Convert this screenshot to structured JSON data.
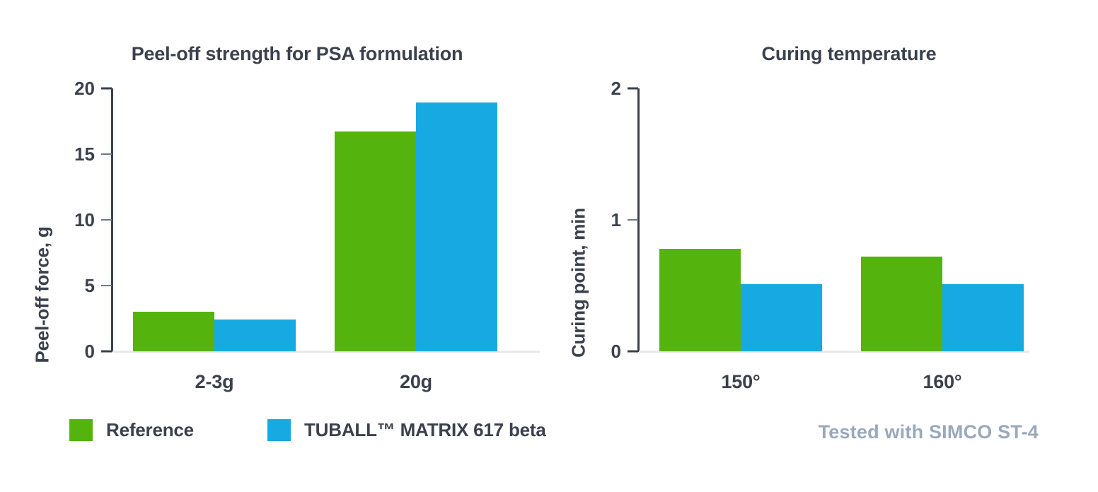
{
  "colors": {
    "series": [
      "#54B30D",
      "#17A9E2"
    ],
    "text_dark": "#3A414D",
    "muted_note": "#9AA8BD",
    "axis": "#3A414D",
    "tick_minor": "#6F7781",
    "baseline": "#E9E9E9",
    "background": "#FFFFFF"
  },
  "chart_data": [
    {
      "type": "bar",
      "title": "Peel-off strength for PSA formulation",
      "ylabel": "Peel-off force, g",
      "xlabel": "",
      "categories": [
        "2-3g",
        "20g"
      ],
      "series": [
        {
          "name": "Reference",
          "values": [
            3.0,
            16.7
          ]
        },
        {
          "name": "TUBALL™ MATRIX 617 beta",
          "values": [
            2.4,
            18.9
          ]
        }
      ],
      "ylim": [
        0,
        20
      ],
      "yticks": [
        0,
        5,
        10,
        15,
        20
      ],
      "grid": false,
      "legend_position": "below-left"
    },
    {
      "type": "bar",
      "title": "Curing temperature",
      "ylabel": "Curing point, min",
      "xlabel": "",
      "categories": [
        "150°",
        "160°"
      ],
      "series": [
        {
          "name": "Reference",
          "values": [
            0.78,
            0.72
          ]
        },
        {
          "name": "TUBALL™ MATRIX 617 beta",
          "values": [
            0.51,
            0.51
          ]
        }
      ],
      "ylim": [
        0,
        2
      ],
      "yticks": [
        0,
        1,
        2
      ],
      "grid": false,
      "legend_position": "none"
    }
  ],
  "legend": {
    "items": [
      {
        "label": "Reference",
        "color": "#54B30D"
      },
      {
        "label": "TUBALL™ MATRIX 617 beta",
        "color": "#17A9E2"
      }
    ]
  },
  "footer": {
    "note": "Tested with SIMCO ST-4"
  }
}
